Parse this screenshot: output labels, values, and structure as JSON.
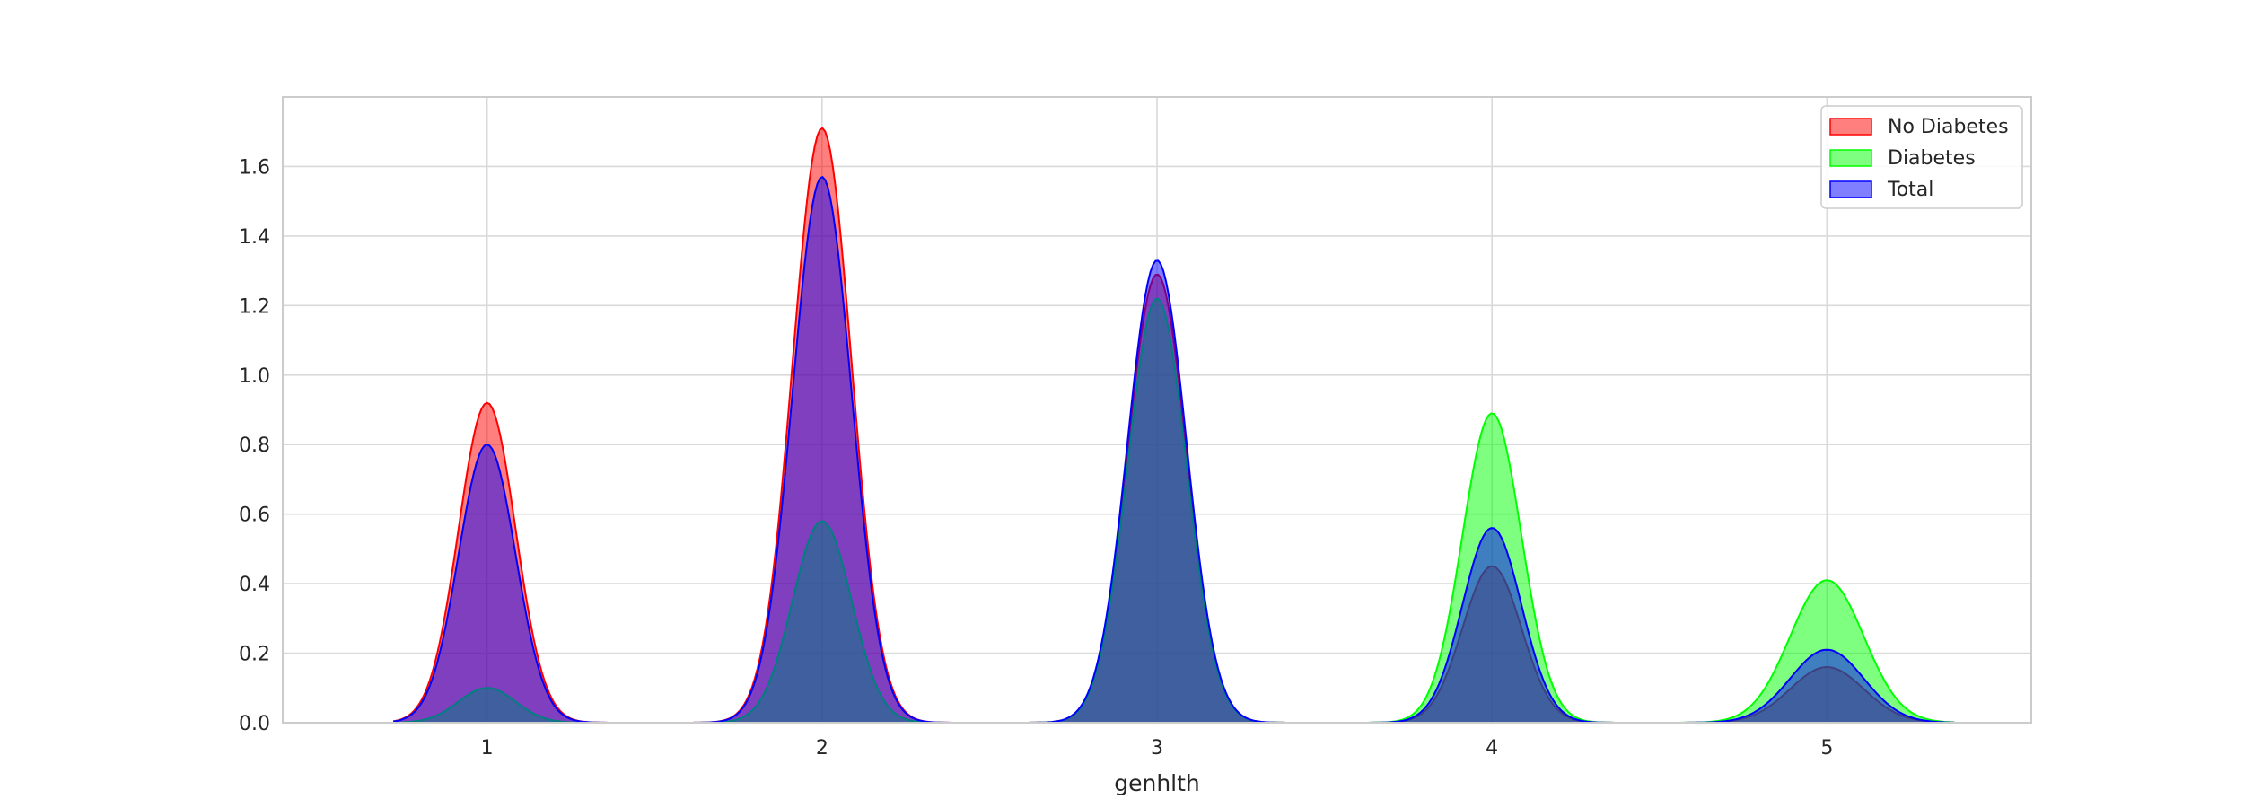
{
  "chart_data": {
    "type": "area",
    "title": "",
    "xlabel": "genhlth",
    "ylabel": "",
    "xlim": [
      0.39,
      5.61
    ],
    "ylim": [
      0,
      1.8
    ],
    "x_ticks": [
      1,
      2,
      3,
      4,
      5
    ],
    "y_ticks": [
      0.0,
      0.2,
      0.4,
      0.6,
      0.8,
      1.0,
      1.2,
      1.4,
      1.6
    ],
    "grid": true,
    "legend_position": "top-right",
    "peak_std": [
      0.085,
      0.088,
      0.088,
      0.088,
      0.11
    ],
    "series": [
      {
        "name": "No Diabetes",
        "color": "#ff0000",
        "peaks": [
          0.92,
          1.71,
          1.29,
          0.45,
          0.16
        ]
      },
      {
        "name": "Diabetes",
        "color": "#00ff00",
        "peaks": [
          0.1,
          0.58,
          1.22,
          0.89,
          0.41
        ]
      },
      {
        "name": "Total",
        "color": "#0000ff",
        "peaks": [
          0.8,
          1.57,
          1.33,
          0.56,
          0.21
        ]
      }
    ]
  }
}
